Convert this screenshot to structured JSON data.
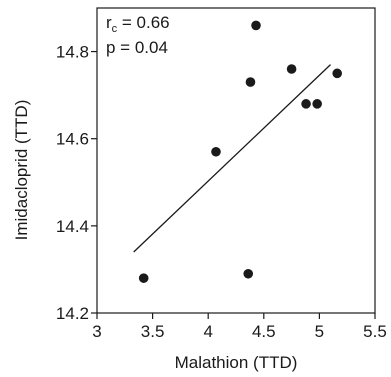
{
  "chart_data": {
    "type": "scatter",
    "title": "",
    "xlabel": "Malathion (TTD)",
    "ylabel": "Imidacloprid (TTD)",
    "xlim": [
      3,
      5.5
    ],
    "ylim": [
      14.2,
      14.9
    ],
    "x_ticks": [
      3,
      3.5,
      4,
      4.5,
      5,
      5.5
    ],
    "x_tick_labels": [
      "3",
      "3.5",
      "4",
      "4.5",
      "5",
      "5.5"
    ],
    "y_ticks": [
      14.2,
      14.4,
      14.6,
      14.8
    ],
    "y_tick_labels": [
      "14.2",
      "14.4",
      "14.6",
      "14.8"
    ],
    "grid": false,
    "legend": "none",
    "annotations": {
      "r_symbol": "r",
      "r_subscript": "c",
      "r_value_text": " = 0.66",
      "p_text": "p = 0.04"
    },
    "series": [
      {
        "points": [
          {
            "x": 3.42,
            "y": 14.28
          },
          {
            "x": 4.07,
            "y": 14.57
          },
          {
            "x": 4.36,
            "y": 14.29
          },
          {
            "x": 4.38,
            "y": 14.73
          },
          {
            "x": 4.43,
            "y": 14.86
          },
          {
            "x": 4.75,
            "y": 14.76
          },
          {
            "x": 4.88,
            "y": 14.68
          },
          {
            "x": 4.98,
            "y": 14.68
          },
          {
            "x": 5.16,
            "y": 14.75
          }
        ]
      }
    ],
    "regression_line": {
      "x1": 3.33,
      "y1": 14.34,
      "x2": 5.1,
      "y2": 14.77
    },
    "colors": {
      "points": "#1a1a1a",
      "axes": "#1a1a1a",
      "line": "#1a1a1a"
    }
  }
}
